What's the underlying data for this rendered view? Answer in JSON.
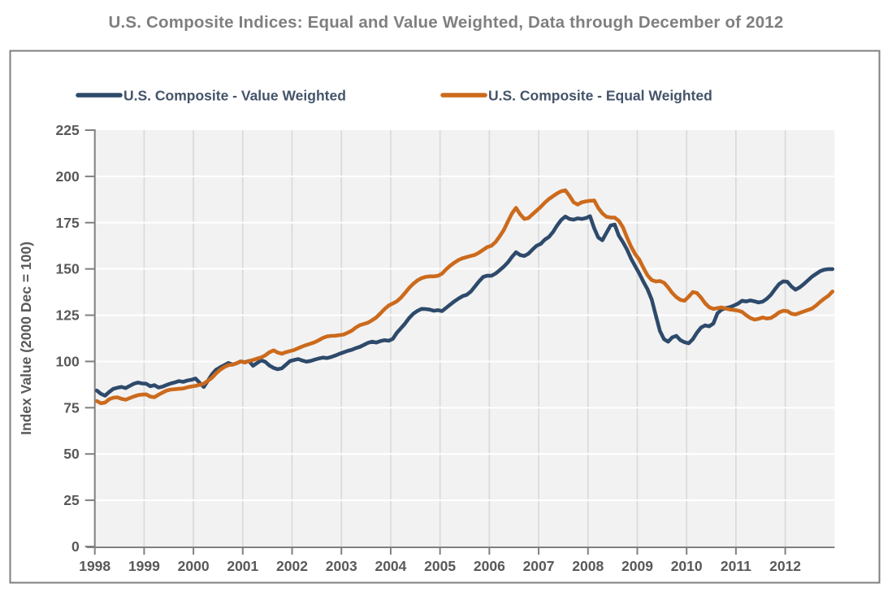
{
  "title": "U.S. Composite Indices: Equal and Value Weighted, Data through December of 2012",
  "legend": [
    {
      "label": "U.S. Composite - Value Weighted"
    },
    {
      "label": "U.S. Composite - Equal Weighted"
    }
  ],
  "colors": {
    "value_weighted_line": "#2E4A6B",
    "equal_weighted_line": "#CC6A1C",
    "title_text": "#7F7F7F",
    "axis_text": "#595959",
    "legend_text": "#44546A",
    "plot_background": "#F2F2F2",
    "horizontal_gridline": "#FFFFFF",
    "vertical_gridline": "#DADADA",
    "axis_line": "#808080",
    "frame_border": "#7F7F7F"
  },
  "chart_data": {
    "type": "line",
    "title": "U.S. Composite Indices: Equal and Value Weighted, Data through December of 2012",
    "xlabel": "",
    "ylabel": "Index Value (2000 Dec = 100)",
    "ylim": [
      0,
      225
    ],
    "y_tick_step": 25,
    "y_ticks": [
      0,
      25,
      50,
      75,
      100,
      125,
      150,
      175,
      200,
      225
    ],
    "xlim_years": [
      1998,
      2013
    ],
    "x_tick_labels": [
      "1998",
      "1999",
      "2000",
      "2001",
      "2002",
      "2003",
      "2004",
      "2005",
      "2006",
      "2007",
      "2008",
      "2009",
      "2010",
      "2011",
      "2012"
    ],
    "x_frequency": "monthly",
    "x_start": "1998-01",
    "x_end": "2012-12",
    "grid": {
      "horizontal": true,
      "vertical": true
    },
    "legend_position": "top-inside",
    "series": [
      {
        "name": "U.S. Composite - Value Weighted",
        "color": "#2E4A6B",
        "values": [
          84.3,
          82.5,
          81.5,
          83.5,
          85.2,
          85.8,
          86.2,
          85.6,
          86.8,
          88.0,
          88.6,
          88.1,
          88.0,
          86.6,
          87.2,
          85.9,
          86.4,
          87.3,
          88.1,
          88.7,
          89.4,
          89.0,
          89.7,
          90.1,
          90.8,
          88.5,
          86.2,
          89.5,
          93.0,
          95.5,
          96.8,
          98.0,
          99.2,
          98.3,
          99.0,
          100.0,
          99.6,
          100.3,
          97.7,
          99.2,
          100.6,
          99.8,
          97.8,
          96.5,
          95.8,
          96.3,
          98.2,
          100.2,
          100.8,
          101.3,
          100.5,
          99.9,
          100.3,
          101.0,
          101.6,
          102.1,
          101.8,
          102.4,
          103.2,
          104.1,
          104.9,
          105.7,
          106.3,
          107.2,
          107.9,
          109.0,
          110.1,
          110.7,
          110.2,
          111.0,
          111.5,
          111.2,
          112.2,
          115.5,
          118.0,
          120.5,
          123.5,
          125.8,
          127.3,
          128.4,
          128.3,
          128.0,
          127.4,
          127.7,
          127.2,
          129.0,
          130.8,
          132.5,
          134.0,
          135.3,
          136.0,
          137.8,
          140.5,
          143.3,
          145.7,
          146.4,
          146.3,
          147.5,
          149.3,
          151.2,
          153.5,
          156.5,
          159.0,
          157.5,
          157.0,
          158.2,
          160.5,
          162.5,
          163.5,
          165.8,
          167.3,
          170.0,
          173.5,
          176.5,
          178.3,
          177.0,
          176.6,
          177.3,
          177.0,
          177.5,
          178.5,
          172.0,
          167.0,
          165.5,
          169.5,
          173.5,
          174.0,
          168.0,
          164.5,
          160.5,
          155.5,
          151.5,
          147.5,
          143.0,
          139.0,
          133.5,
          125.0,
          116.5,
          112.0,
          110.7,
          113.0,
          113.8,
          111.5,
          110.4,
          109.8,
          112.0,
          115.5,
          118.3,
          119.5,
          119.0,
          120.5,
          126.0,
          128.0,
          128.8,
          129.3,
          130.2,
          131.2,
          132.8,
          132.4,
          133.0,
          132.5,
          131.9,
          132.3,
          133.8,
          136.0,
          139.0,
          141.8,
          143.3,
          143.1,
          140.5,
          138.8,
          140.0,
          141.8,
          143.8,
          145.8,
          147.3,
          148.8,
          149.6,
          149.9,
          149.9
        ]
      },
      {
        "name": "U.S. Composite - Equal Weighted",
        "color": "#CC6A1C",
        "values": [
          78.6,
          77.4,
          77.8,
          79.6,
          80.4,
          80.6,
          79.8,
          79.3,
          80.2,
          81.1,
          81.8,
          82.1,
          82.2,
          81.0,
          80.7,
          82.0,
          83.2,
          84.3,
          84.8,
          85.0,
          85.2,
          85.4,
          86.0,
          86.5,
          86.8,
          87.4,
          88.0,
          89.5,
          91.2,
          93.5,
          95.5,
          97.0,
          98.0,
          98.3,
          99.0,
          100.0,
          99.4,
          100.2,
          100.8,
          101.5,
          102.2,
          103.3,
          105.0,
          106.0,
          104.8,
          104.2,
          105.0,
          105.6,
          106.2,
          107.2,
          108.1,
          108.9,
          109.6,
          110.4,
          111.5,
          112.7,
          113.5,
          113.8,
          113.9,
          114.2,
          114.5,
          115.5,
          116.6,
          118.3,
          119.6,
          120.3,
          121.0,
          122.3,
          123.8,
          126.0,
          128.3,
          130.2,
          131.3,
          132.5,
          134.5,
          137.0,
          139.8,
          142.0,
          143.8,
          145.0,
          145.7,
          146.0,
          146.0,
          146.3,
          147.5,
          149.8,
          151.8,
          153.4,
          154.8,
          155.8,
          156.4,
          157.0,
          157.6,
          158.8,
          160.3,
          161.8,
          162.5,
          164.5,
          167.5,
          171.0,
          175.5,
          180.0,
          183.0,
          179.5,
          177.0,
          177.5,
          179.5,
          181.5,
          183.5,
          185.8,
          187.8,
          189.3,
          190.8,
          192.0,
          192.5,
          189.5,
          186.0,
          184.8,
          186.0,
          186.5,
          186.8,
          187.0,
          183.0,
          180.0,
          178.2,
          177.8,
          177.7,
          176.0,
          172.5,
          167.0,
          162.0,
          158.0,
          155.0,
          150.5,
          146.5,
          144.0,
          143.2,
          143.5,
          142.5,
          140.0,
          137.0,
          134.8,
          133.3,
          132.8,
          135.0,
          137.5,
          137.0,
          134.5,
          131.5,
          129.3,
          128.4,
          128.8,
          129.2,
          128.6,
          128.1,
          127.8,
          127.5,
          126.8,
          125.0,
          123.5,
          122.6,
          123.0,
          123.8,
          123.2,
          123.5,
          124.8,
          126.5,
          127.4,
          127.2,
          125.8,
          125.4,
          126.2,
          127.0,
          127.8,
          128.6,
          130.2,
          132.2,
          134.0,
          135.5,
          137.8
        ]
      }
    ]
  }
}
